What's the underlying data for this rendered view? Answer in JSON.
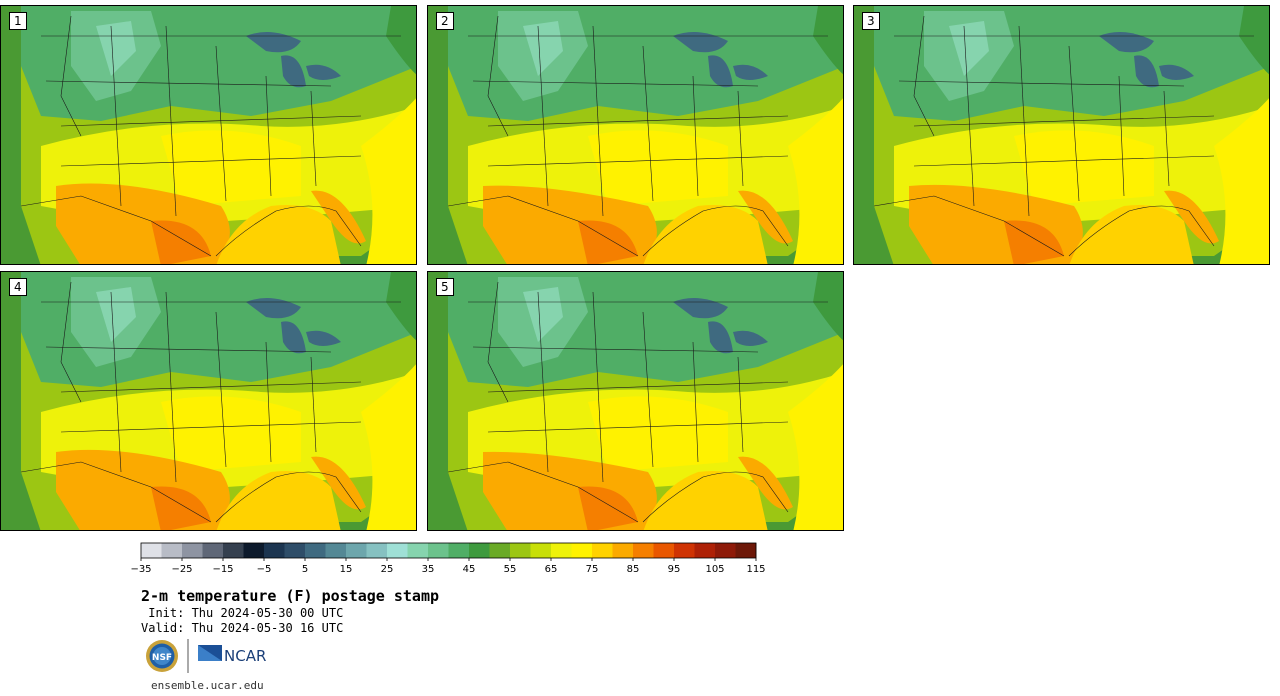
{
  "panels": [
    {
      "label": "1"
    },
    {
      "label": "2"
    },
    {
      "label": "3"
    },
    {
      "label": "4"
    },
    {
      "label": "5"
    }
  ],
  "colorbar": {
    "colors": [
      "#dfe1e7",
      "#b8bcc6",
      "#8e94a2",
      "#5f6777",
      "#35404f",
      "#0d1a2c",
      "#1c3550",
      "#2e4d68",
      "#3f6a80",
      "#548895",
      "#6da6ac",
      "#86c1c1",
      "#9fe0d6",
      "#86d4ae",
      "#6cc28c",
      "#50ae66",
      "#3e9a3e",
      "#6aaa26",
      "#9cc613",
      "#c8df08",
      "#eef20a",
      "#fff200",
      "#ffd200",
      "#fbaa00",
      "#f57f00",
      "#e95700",
      "#cf3303",
      "#ae2106",
      "#8e1a08",
      "#6d1808"
    ],
    "tick_labels": [
      "−35",
      "−25",
      "−15",
      "−5",
      "5",
      "15",
      "25",
      "35",
      "45",
      "55",
      "65",
      "75",
      "85",
      "95",
      "105",
      "115"
    ]
  },
  "title": "2-m temperature (F) postage stamp",
  "init": " Init: Thu 2024-05-30 00 UTC",
  "valid": "Valid: Thu 2024-05-30 16 UTC",
  "logos": {
    "nsf_text": "NSF",
    "ncar_text": "NCAR"
  },
  "website": "ensemble.ucar.edu"
}
